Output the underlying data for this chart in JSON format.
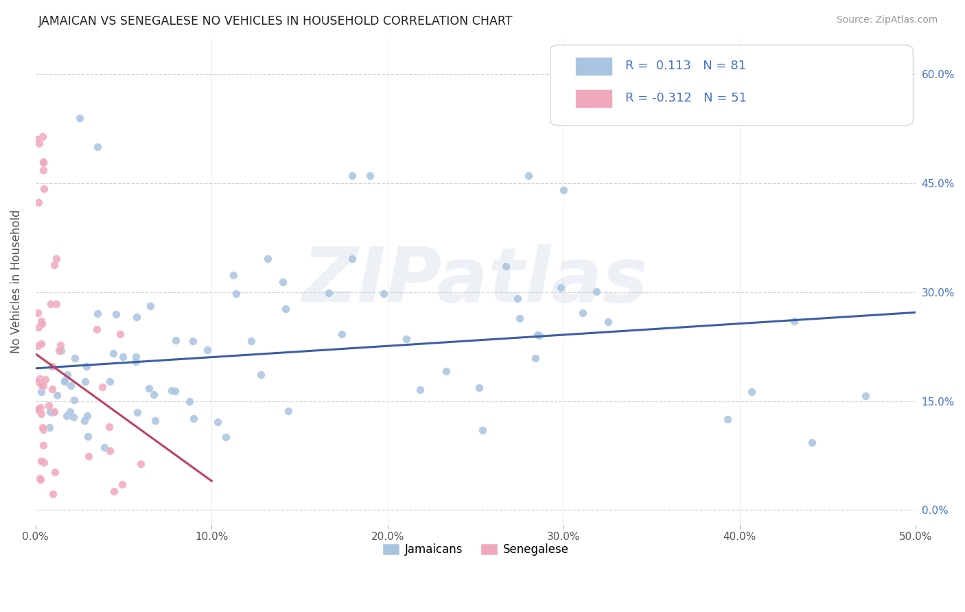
{
  "title": "JAMAICAN VS SENEGALESE NO VEHICLES IN HOUSEHOLD CORRELATION CHART",
  "source": "Source: ZipAtlas.com",
  "ylabel_label": "No Vehicles in Household",
  "xlim": [
    0.0,
    0.5
  ],
  "ylim": [
    -0.02,
    0.65
  ],
  "jamaican_color": "#a8c4e0",
  "senegalese_color": "#f0a8bc",
  "trend_jamaican_color": "#3a5fa8",
  "trend_senegalese_color": "#c04060",
  "watermark_text": "ZIPatlas",
  "background_color": "#ffffff",
  "grid_color": "#c8c8c8",
  "legend_r_jam": "R =  0.113",
  "legend_n_jam": "N = 81",
  "legend_r_sen": "R = -0.312",
  "legend_n_sen": "N = 51",
  "xtick_vals": [
    0.0,
    0.1,
    0.2,
    0.3,
    0.4,
    0.5
  ],
  "ytick_vals": [
    0.0,
    0.15,
    0.3,
    0.45,
    0.6
  ],
  "right_ytick_color": "#4472c4",
  "title_color": "#222222",
  "source_color": "#999999",
  "ylabel_color": "#555555",
  "jam_trend_x0": 0.0,
  "jam_trend_x1": 0.5,
  "jam_trend_y0": 0.195,
  "jam_trend_y1": 0.272,
  "sen_trend_x0": 0.0,
  "sen_trend_x1": 0.1,
  "sen_trend_y0": 0.215,
  "sen_trend_y1": 0.04
}
